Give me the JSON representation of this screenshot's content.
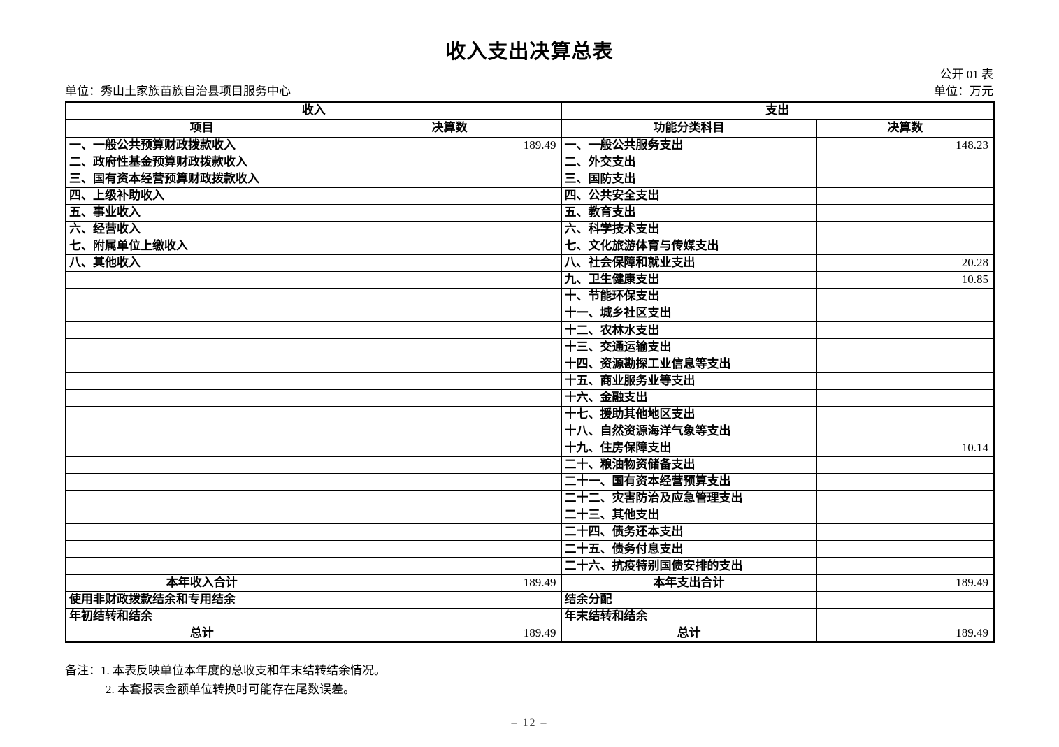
{
  "title": "收入支出决算总表",
  "meta": {
    "table_code": "公开 01 表",
    "org_unit": "单位：秀山土家族苗族自治县项目服务中心",
    "currency_unit": "单位：万元"
  },
  "table": {
    "income_header": "收入",
    "expense_header": "支出",
    "columns": {
      "income_item": "项目",
      "income_amount": "决算数",
      "expense_item": "功能分类科目",
      "expense_amount": "决算数"
    },
    "rows": [
      {
        "income": "一、一般公共预算财政拨款收入",
        "income_amt": "189.49",
        "expense": "一、一般公共服务支出",
        "expense_amt": "148.23"
      },
      {
        "income": "二、政府性基金预算财政拨款收入",
        "income_amt": "",
        "expense": "二、外交支出",
        "expense_amt": ""
      },
      {
        "income": "三、国有资本经营预算财政拨款收入",
        "income_amt": "",
        "expense": "三、国防支出",
        "expense_amt": ""
      },
      {
        "income": "四、上级补助收入",
        "income_amt": "",
        "expense": "四、公共安全支出",
        "expense_amt": ""
      },
      {
        "income": "五、事业收入",
        "income_amt": "",
        "expense": "五、教育支出",
        "expense_amt": ""
      },
      {
        "income": "六、经营收入",
        "income_amt": "",
        "expense": "六、科学技术支出",
        "expense_amt": ""
      },
      {
        "income": "七、附属单位上缴收入",
        "income_amt": "",
        "expense": "七、文化旅游体育与传媒支出",
        "expense_amt": ""
      },
      {
        "income": "八、其他收入",
        "income_amt": "",
        "expense": "八、社会保障和就业支出",
        "expense_amt": "20.28"
      },
      {
        "income": "",
        "income_amt": "",
        "expense": "九、卫生健康支出",
        "expense_amt": "10.85"
      },
      {
        "income": "",
        "income_amt": "",
        "expense": "十、节能环保支出",
        "expense_amt": ""
      },
      {
        "income": "",
        "income_amt": "",
        "expense": "十一、城乡社区支出",
        "expense_amt": ""
      },
      {
        "income": "",
        "income_amt": "",
        "expense": "十二、农林水支出",
        "expense_amt": ""
      },
      {
        "income": "",
        "income_amt": "",
        "expense": "十三、交通运输支出",
        "expense_amt": ""
      },
      {
        "income": "",
        "income_amt": "",
        "expense": "十四、资源勘探工业信息等支出",
        "expense_amt": ""
      },
      {
        "income": "",
        "income_amt": "",
        "expense": "十五、商业服务业等支出",
        "expense_amt": ""
      },
      {
        "income": "",
        "income_amt": "",
        "expense": "十六、金融支出",
        "expense_amt": ""
      },
      {
        "income": "",
        "income_amt": "",
        "expense": "十七、援助其他地区支出",
        "expense_amt": ""
      },
      {
        "income": "",
        "income_amt": "",
        "expense": "十八、自然资源海洋气象等支出",
        "expense_amt": ""
      },
      {
        "income": "",
        "income_amt": "",
        "expense": "十九、住房保障支出",
        "expense_amt": "10.14"
      },
      {
        "income": "",
        "income_amt": "",
        "expense": "二十、粮油物资储备支出",
        "expense_amt": ""
      },
      {
        "income": "",
        "income_amt": "",
        "expense": "二十一、国有资本经营预算支出",
        "expense_amt": ""
      },
      {
        "income": "",
        "income_amt": "",
        "expense": "二十二、灾害防治及应急管理支出",
        "expense_amt": ""
      },
      {
        "income": "",
        "income_amt": "",
        "expense": "二十三、其他支出",
        "expense_amt": ""
      },
      {
        "income": "",
        "income_amt": "",
        "expense": "二十四、债务还本支出",
        "expense_amt": ""
      },
      {
        "income": "",
        "income_amt": "",
        "expense": "二十五、债务付息支出",
        "expense_amt": ""
      },
      {
        "income": "",
        "income_amt": "",
        "expense": "二十六、抗疫特别国债安排的支出",
        "expense_amt": ""
      },
      {
        "income": "本年收入合计",
        "income_amt": "189.49",
        "expense": "本年支出合计",
        "expense_amt": "189.49",
        "align": "center"
      },
      {
        "income": "使用非财政拨款结余和专用结余",
        "income_amt": "",
        "expense": "结余分配",
        "expense_amt": ""
      },
      {
        "income": "年初结转和结余",
        "income_amt": "",
        "expense": "年末结转和结余",
        "expense_amt": ""
      },
      {
        "income": "总计",
        "income_amt": "189.49",
        "expense": "总计",
        "expense_amt": "189.49",
        "align": "center"
      }
    ]
  },
  "notes": {
    "label": "备注：",
    "lines": [
      "1. 本表反映单位本年度的总收支和年末结转结余情况。",
      "2. 本套报表金额单位转换时可能存在尾数误差。"
    ]
  },
  "page_number": "– 12 –"
}
